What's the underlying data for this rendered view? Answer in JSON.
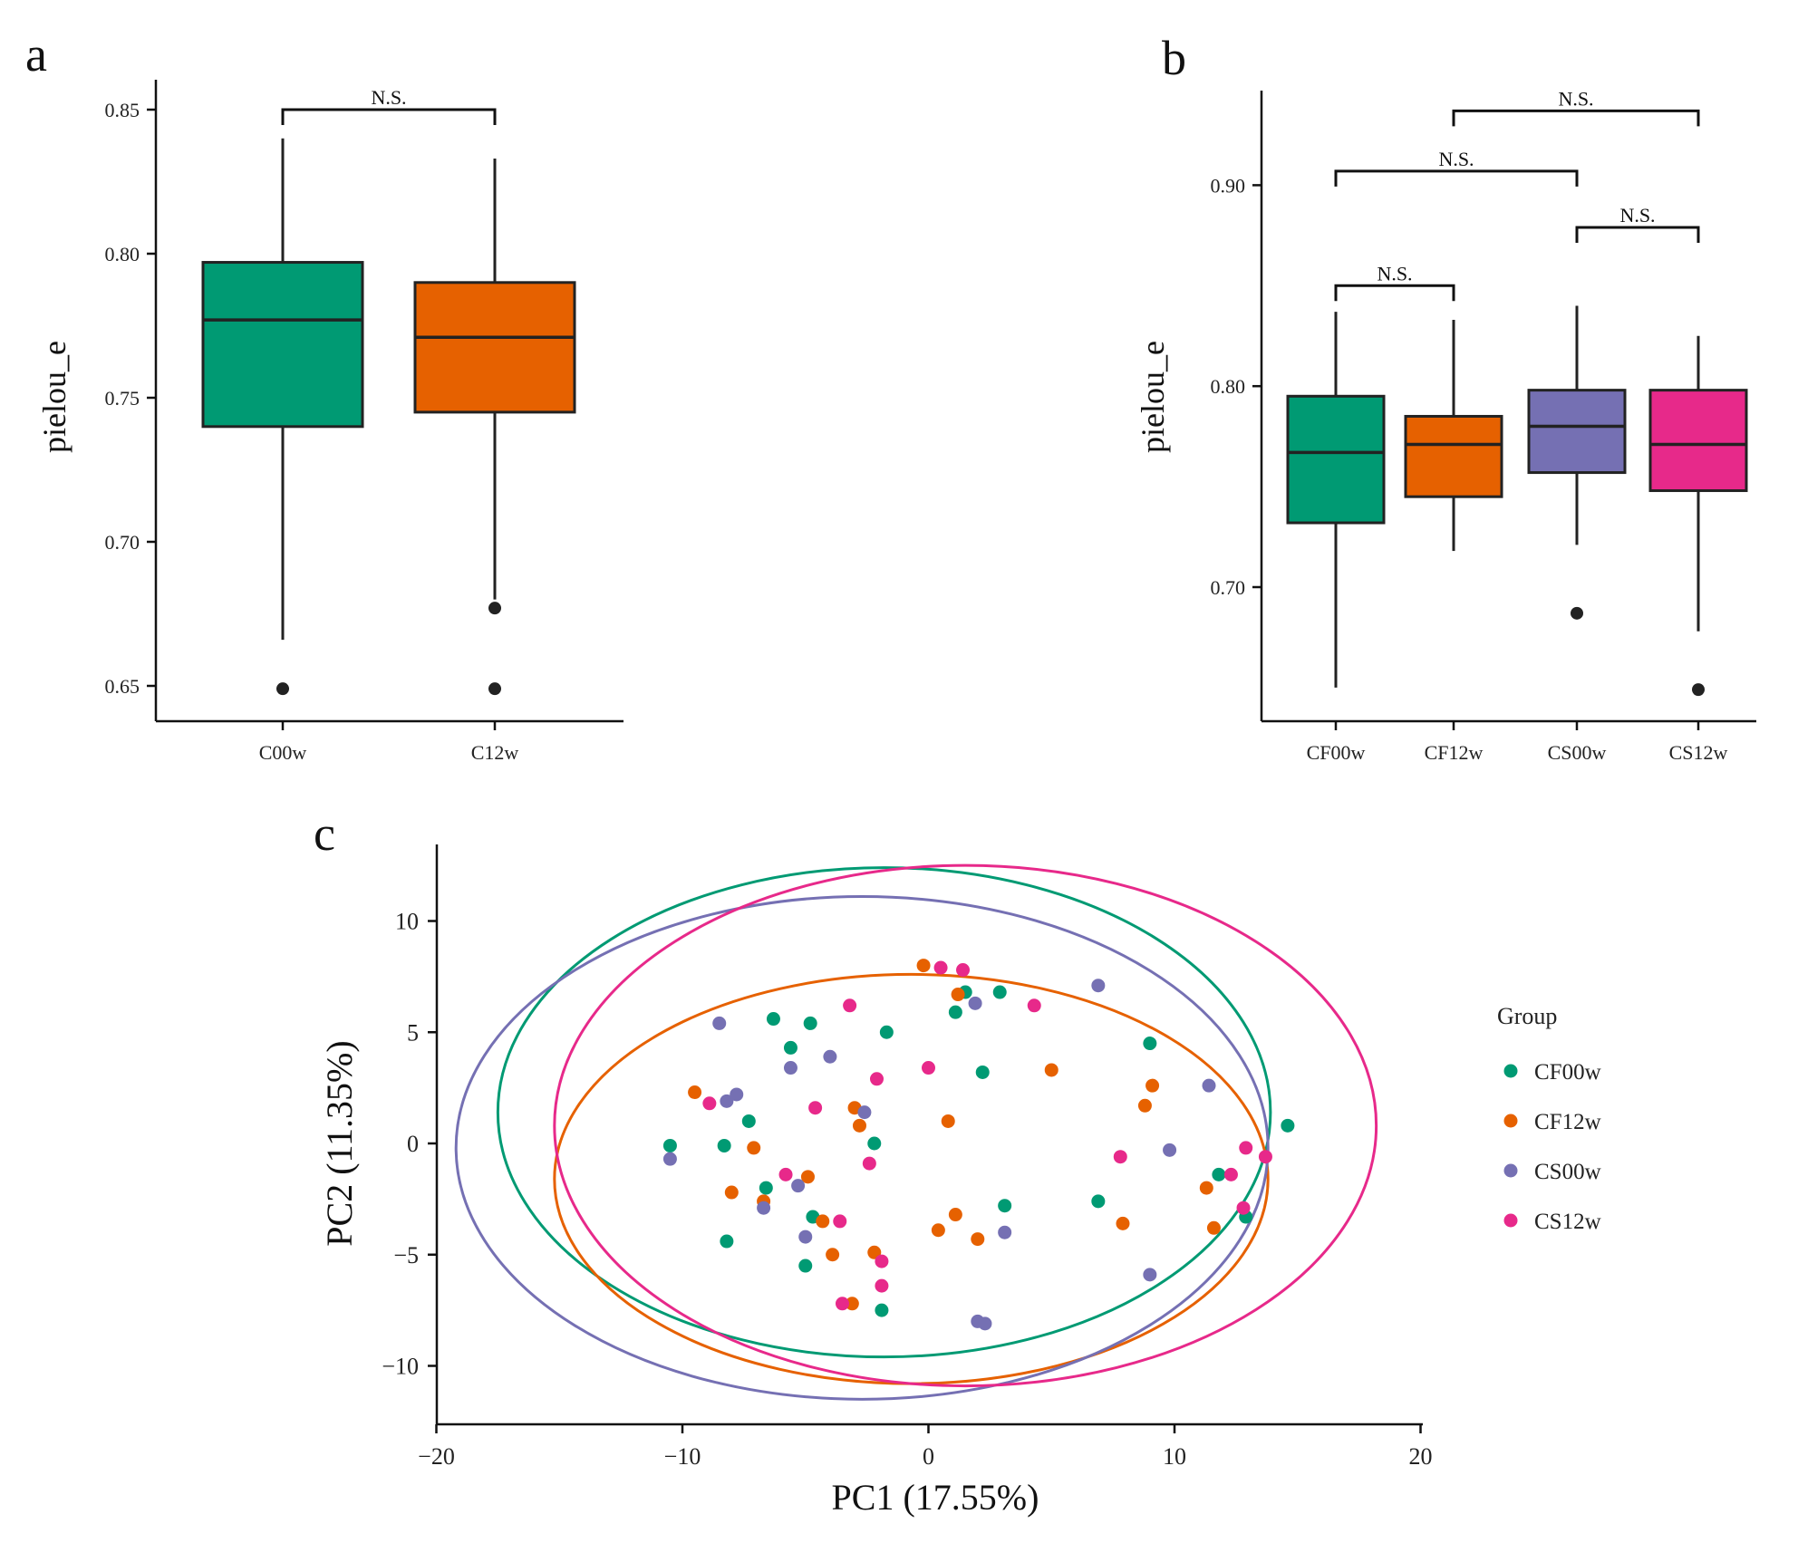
{
  "colors": {
    "CF00w": "#009A73",
    "CF12w": "#E66100",
    "CS00w": "#7570B3",
    "CS12w": "#E7298A",
    "C00w": "#009A73",
    "C12w": "#E66100",
    "axis": "#111111",
    "outlier": "#222222"
  },
  "chart_data": [
    {
      "id": "a",
      "type": "boxplot",
      "panel_label": "a",
      "xlabel": "",
      "ylabel": "pielou_e",
      "ylim": [
        0.638,
        0.86
      ],
      "yticks": [
        0.65,
        0.7,
        0.75,
        0.8,
        0.85
      ],
      "ytick_labels": [
        "0.65",
        "0.70",
        "0.75",
        "0.80",
        "0.85"
      ],
      "categories": [
        "C00w",
        "C12w"
      ],
      "boxes": [
        {
          "group": "C00w",
          "min": 0.666,
          "q1": 0.74,
          "median": 0.777,
          "q3": 0.797,
          "max": 0.84,
          "outliers": [
            0.649
          ]
        },
        {
          "group": "C12w",
          "min": 0.68,
          "q1": 0.745,
          "median": 0.771,
          "q3": 0.79,
          "max": 0.833,
          "outliers": [
            0.677,
            0.649
          ]
        }
      ],
      "significance": [
        {
          "from": "C00w",
          "to": "C12w",
          "level": 0.85,
          "label": "N.S."
        }
      ]
    },
    {
      "id": "b",
      "type": "boxplot",
      "panel_label": "b",
      "xlabel": "",
      "ylabel": "pielou_e",
      "ylim": [
        0.633,
        0.947
      ],
      "yticks": [
        0.7,
        0.8,
        0.9
      ],
      "ytick_labels": [
        "0.70",
        "0.80",
        "0.90"
      ],
      "categories": [
        "CF00w",
        "CF12w",
        "CS00w",
        "CS12w"
      ],
      "boxes": [
        {
          "group": "CF00w",
          "min": 0.65,
          "q1": 0.732,
          "median": 0.767,
          "q3": 0.795,
          "max": 0.837,
          "outliers": []
        },
        {
          "group": "CF12w",
          "min": 0.718,
          "q1": 0.745,
          "median": 0.771,
          "q3": 0.785,
          "max": 0.833,
          "outliers": []
        },
        {
          "group": "CS00w",
          "min": 0.721,
          "q1": 0.757,
          "median": 0.78,
          "q3": 0.798,
          "max": 0.84,
          "outliers": [
            0.687
          ]
        },
        {
          "group": "CS12w",
          "min": 0.678,
          "q1": 0.748,
          "median": 0.771,
          "q3": 0.798,
          "max": 0.825,
          "outliers": [
            0.649
          ]
        }
      ],
      "significance": [
        {
          "from": "CF00w",
          "to": "CF12w",
          "level": 0.85,
          "label": "N.S."
        },
        {
          "from": "CF00w",
          "to": "CS00w",
          "level": 0.907,
          "label": "N.S."
        },
        {
          "from": "CS00w",
          "to": "CS12w",
          "level": 0.879,
          "label": "N.S."
        },
        {
          "from": "CF12w",
          "to": "CS12w",
          "level": 0.937,
          "label": "N.S."
        }
      ]
    },
    {
      "id": "c",
      "type": "scatter",
      "panel_label": "c",
      "xlabel": "PC1 (17.55%)",
      "ylabel": "PC2 (11.35%)",
      "xlim": [
        -20.4,
        20.0
      ],
      "ylim": [
        -12.5,
        13.5
      ],
      "xticks": [
        -20,
        -10,
        0,
        10,
        20
      ],
      "xtick_labels": [
        "−20",
        "−10",
        "0",
        "10",
        "20"
      ],
      "yticks": [
        -10,
        -5,
        0,
        5,
        10
      ],
      "ytick_labels": [
        "−10",
        "−5",
        "0",
        "5",
        "10"
      ],
      "legend_title": "Group",
      "legend_position": "right",
      "series": [
        {
          "name": "CF00w",
          "points": [
            [
              -10.5,
              -0.1
            ],
            [
              -8.3,
              -0.1
            ],
            [
              -8.2,
              -4.4
            ],
            [
              -7.3,
              1.0
            ],
            [
              -6.6,
              -2.0
            ],
            [
              -6.3,
              5.6
            ],
            [
              -5.6,
              4.3
            ],
            [
              -4.8,
              5.4
            ],
            [
              -4.7,
              -3.3
            ],
            [
              -5.0,
              -5.5
            ],
            [
              -2.2,
              0.0
            ],
            [
              -1.7,
              5.0
            ],
            [
              -1.9,
              -7.5
            ],
            [
              1.1,
              5.9
            ],
            [
              1.5,
              6.8
            ],
            [
              2.9,
              6.8
            ],
            [
              2.2,
              3.2
            ],
            [
              3.1,
              -2.8
            ],
            [
              6.9,
              -2.6
            ],
            [
              9.0,
              4.5
            ],
            [
              11.8,
              -1.4
            ],
            [
              12.9,
              -3.3
            ],
            [
              14.6,
              0.8
            ]
          ]
        },
        {
          "name": "CF12w",
          "points": [
            [
              -9.5,
              2.3
            ],
            [
              -8.0,
              -2.2
            ],
            [
              -7.1,
              -0.2
            ],
            [
              -6.7,
              -2.6
            ],
            [
              -4.9,
              -1.5
            ],
            [
              -4.3,
              -3.5
            ],
            [
              -3.9,
              -5.0
            ],
            [
              -3.0,
              1.6
            ],
            [
              -2.8,
              0.8
            ],
            [
              -2.2,
              -4.9
            ],
            [
              -3.1,
              -7.2
            ],
            [
              -0.2,
              8.0
            ],
            [
              0.4,
              -3.9
            ],
            [
              0.8,
              1.0
            ],
            [
              1.1,
              -3.2
            ],
            [
              1.2,
              6.7
            ],
            [
              2.0,
              -4.3
            ],
            [
              5.0,
              3.3
            ],
            [
              7.9,
              -3.6
            ],
            [
              8.8,
              1.7
            ],
            [
              9.1,
              2.6
            ],
            [
              11.3,
              -2.0
            ],
            [
              11.6,
              -3.8
            ]
          ]
        },
        {
          "name": "CS00w",
          "points": [
            [
              -10.5,
              -0.7
            ],
            [
              -8.5,
              5.4
            ],
            [
              -8.2,
              1.9
            ],
            [
              -7.8,
              2.2
            ],
            [
              -6.7,
              -2.9
            ],
            [
              -5.6,
              3.4
            ],
            [
              -5.3,
              -1.9
            ],
            [
              -5.0,
              -4.2
            ],
            [
              -4.0,
              3.9
            ],
            [
              -2.6,
              1.4
            ],
            [
              1.9,
              6.3
            ],
            [
              2.0,
              -8.0
            ],
            [
              2.3,
              -8.1
            ],
            [
              3.1,
              -4.0
            ],
            [
              6.9,
              7.1
            ],
            [
              9.0,
              -5.9
            ],
            [
              9.8,
              -0.3
            ],
            [
              11.4,
              2.6
            ]
          ]
        },
        {
          "name": "CS12w",
          "points": [
            [
              -8.9,
              1.8
            ],
            [
              -5.8,
              -1.4
            ],
            [
              -4.6,
              1.6
            ],
            [
              -3.6,
              -3.5
            ],
            [
              -3.5,
              -7.2
            ],
            [
              -3.2,
              6.2
            ],
            [
              -2.4,
              -0.9
            ],
            [
              -2.1,
              2.9
            ],
            [
              -1.9,
              -5.3
            ],
            [
              -1.9,
              -6.4
            ],
            [
              0.0,
              3.4
            ],
            [
              0.5,
              7.9
            ],
            [
              1.4,
              7.8
            ],
            [
              4.3,
              6.2
            ],
            [
              7.8,
              -0.6
            ],
            [
              12.3,
              -1.4
            ],
            [
              12.8,
              -2.9
            ],
            [
              12.9,
              -0.2
            ],
            [
              13.7,
              -0.6
            ]
          ]
        }
      ],
      "ellipses": [
        {
          "group": "CF00w",
          "cx": -1.8,
          "cy": 1.4,
          "rx": 15.7,
          "ry": 11.0
        },
        {
          "group": "CF12w",
          "cx": -0.7,
          "cy": -1.6,
          "rx": 14.5,
          "ry": 9.2
        },
        {
          "group": "CS00w",
          "cx": -2.7,
          "cy": -0.2,
          "rx": 16.5,
          "ry": 11.3
        },
        {
          "group": "CS12w",
          "cx": 1.5,
          "cy": 0.8,
          "rx": 16.7,
          "ry": 11.7
        }
      ]
    }
  ]
}
